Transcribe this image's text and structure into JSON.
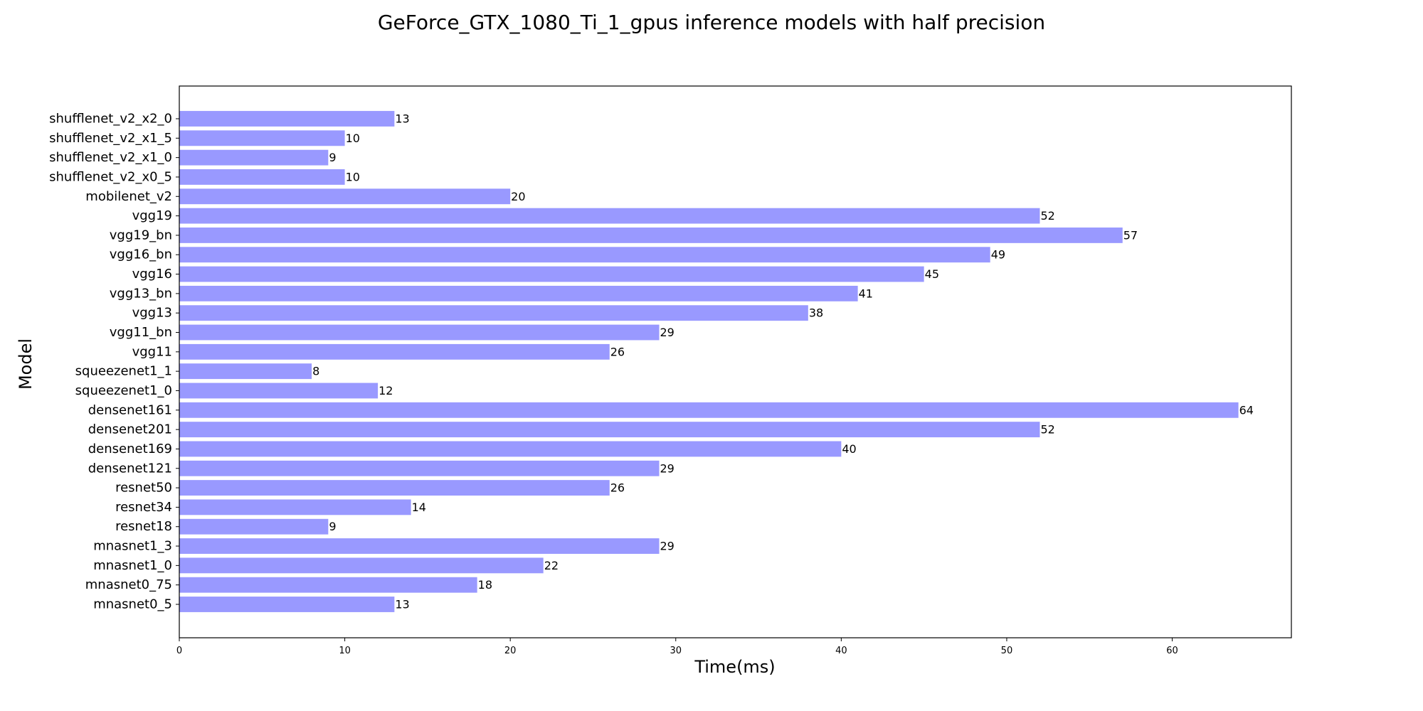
{
  "chart_data": {
    "type": "bar",
    "orientation": "horizontal",
    "title": "GeForce_GTX_1080_Ti_1_gpus inference models with half precision",
    "xlabel": "Time(ms)",
    "ylabel": "Model",
    "categories": [
      "shufflenet_v2_x2_0",
      "shufflenet_v2_x1_5",
      "shufflenet_v2_x1_0",
      "shufflenet_v2_x0_5",
      "mobilenet_v2",
      "vgg19",
      "vgg19_bn",
      "vgg16_bn",
      "vgg16",
      "vgg13_bn",
      "vgg13",
      "vgg11_bn",
      "vgg11",
      "squeezenet1_1",
      "squeezenet1_0",
      "densenet161",
      "densenet201",
      "densenet169",
      "densenet121",
      "resnet50",
      "resnet34",
      "resnet18",
      "mnasnet1_3",
      "mnasnet1_0",
      "mnasnet0_75",
      "mnasnet0_5"
    ],
    "values": [
      13,
      10,
      9,
      10,
      20,
      52,
      57,
      49,
      45,
      41,
      38,
      29,
      26,
      8,
      12,
      64,
      52,
      40,
      29,
      26,
      14,
      9,
      29,
      22,
      18,
      13
    ],
    "xlim": [
      0,
      67.2
    ],
    "xticks": [
      0,
      10,
      20,
      30,
      40,
      50,
      60
    ],
    "bar_color": "#9999ff",
    "grid": false,
    "legend": "none"
  }
}
